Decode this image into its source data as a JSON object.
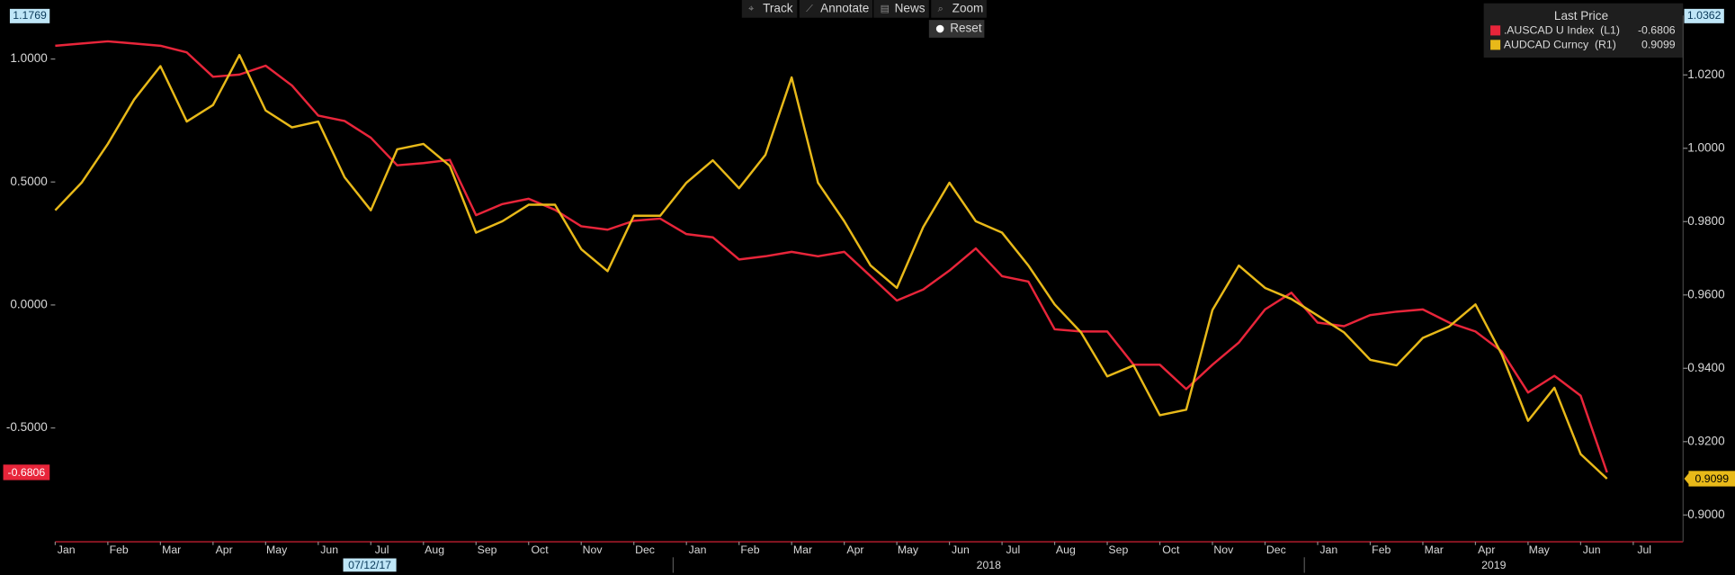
{
  "toolbar": [
    "Track",
    "Annotate",
    "News",
    "Zoom",
    "Reset"
  ],
  "chart_data": {
    "type": "line",
    "legend_title": "Last Price",
    "crosshair_label": "07/12/17",
    "year_labels": [
      "2018",
      "2019"
    ],
    "x": [
      "Jan",
      null,
      "Feb",
      null,
      "Mar",
      null,
      "Apr",
      null,
      "May",
      null,
      "Jun",
      null,
      "Jul",
      null,
      "Aug",
      null,
      "Sep",
      null,
      "Oct",
      null,
      "Nov",
      null,
      "Dec",
      null,
      "Jan",
      null,
      "Feb",
      null,
      "Mar",
      null,
      "Apr",
      null,
      "May",
      null,
      "Jun",
      null,
      "Jul",
      null,
      "Aug",
      null,
      "Sep",
      null,
      "Oct",
      null,
      "Nov",
      null,
      "Dec",
      null,
      "Jan",
      null,
      "Feb",
      null,
      "Mar",
      null,
      "Apr",
      null,
      "May",
      null,
      "Jun",
      null,
      "Jul"
    ],
    "ylim": [
      -0.9628,
      1.1769
    ],
    "yticks": [
      {
        "value": 1,
        "label": "1.0000"
      },
      {
        "value": 0.5,
        "label": "0.5000"
      },
      {
        "value": 0,
        "label": "0.0000"
      },
      {
        "value": -0.5,
        "label": "-0.5000"
      }
    ],
    "y2lim": [
      0.8927,
      1.0362
    ],
    "y2ticks": [
      {
        "value": 1.02,
        "label": "1.0200"
      },
      {
        "value": 1,
        "label": "1.0000"
      },
      {
        "value": 0.98,
        "label": "0.9800"
      },
      {
        "value": 0.96,
        "label": "0.9600"
      },
      {
        "value": 0.94,
        "label": "0.9400"
      },
      {
        "value": 0.92,
        "label": "0.9200"
      },
      {
        "value": 0.9,
        "label": "0.9000"
      }
    ],
    "series": [
      {
        "name": ".AUSCAD U Index  (L1)",
        "color": "#e8253a",
        "values": [
          1.054,
          1.063,
          1.072,
          1.063,
          1.054,
          1.027,
          0.928,
          0.937,
          0.973,
          0.892,
          0.77,
          0.748,
          0.68,
          0.568,
          0.577,
          0.59,
          0.365,
          0.41,
          0.432,
          0.387,
          0.32,
          0.306,
          0.342,
          0.351,
          0.288,
          0.275,
          0.185,
          0.198,
          0.216,
          0.198,
          0.216,
          0.117,
          0.018,
          0.063,
          0.14,
          0.23,
          0.117,
          0.095,
          -0.099,
          -0.108,
          -0.108,
          -0.243,
          -0.243,
          -0.342,
          -0.243,
          -0.153,
          -0.018,
          0.05,
          -0.072,
          -0.086,
          -0.041,
          -0.027,
          -0.018,
          -0.072,
          -0.108,
          -0.189,
          -0.356,
          -0.288,
          -0.369,
          -0.6806,
          null
        ]
      },
      {
        "name": "AUDCAD Curncy  (R1)",
        "color": "#e8b919",
        "axis": "y2",
        "values": [
          0.9831,
          0.9906,
          1.0012,
          1.0133,
          1.0224,
          1.0073,
          1.0118,
          1.0254,
          1.0103,
          1.0057,
          1.0073,
          0.9921,
          0.9831,
          0.9997,
          1.0012,
          0.9952,
          0.977,
          0.9801,
          0.9846,
          0.9846,
          0.9725,
          0.9665,
          0.9816,
          0.9816,
          0.9906,
          0.9967,
          0.9891,
          0.9982,
          1.0193,
          0.9906,
          0.9801,
          0.968,
          0.9619,
          0.9785,
          0.9906,
          0.9801,
          0.977,
          0.968,
          0.9574,
          0.9498,
          0.9378,
          0.9408,
          0.9272,
          0.9287,
          0.9559,
          0.968,
          0.9619,
          0.9589,
          0.9544,
          0.9498,
          0.9423,
          0.9408,
          0.9483,
          0.9514,
          0.9574,
          0.9438,
          0.9257,
          0.9347,
          0.9166,
          0.9099,
          null
        ]
      }
    ]
  }
}
